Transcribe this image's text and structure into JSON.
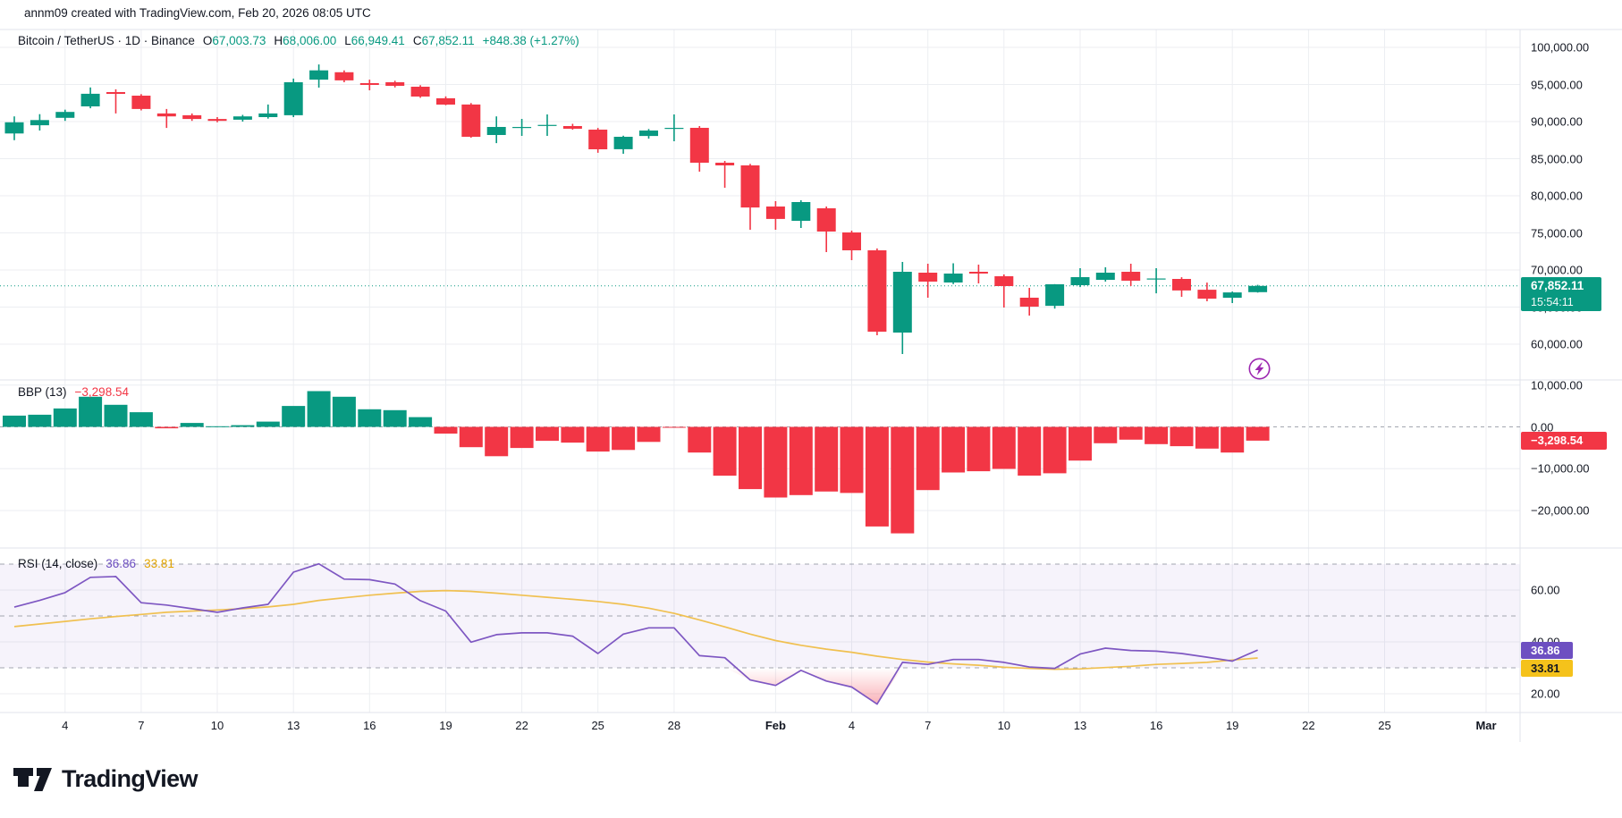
{
  "attribution": "annm09 created with TradingView.com, Feb 20, 2026 08:05 UTC",
  "header": {
    "symbol": "Bitcoin / TetherUS · 1D · Binance",
    "ohlc": [
      {
        "label": "O",
        "value": "67,003.73"
      },
      {
        "label": "H",
        "value": "68,006.00"
      },
      {
        "label": "L",
        "value": "66,949.41"
      },
      {
        "label": "C",
        "value": "67,852.11"
      }
    ],
    "change": "+848.38 (+1.27%)"
  },
  "price_scale": {
    "ticks": [
      {
        "label": "100,000.00",
        "price": 100000
      },
      {
        "label": "95,000.00",
        "price": 95000
      },
      {
        "label": "90,000.00",
        "price": 90000
      },
      {
        "label": "85,000.00",
        "price": 85000
      },
      {
        "label": "80,000.00",
        "price": 80000
      },
      {
        "label": "75,000.00",
        "price": 75000
      },
      {
        "label": "70,000.00",
        "price": 70000
      },
      {
        "label": "65,000.00",
        "price": 65000
      },
      {
        "label": "60,000.00",
        "price": 60000
      }
    ],
    "last_price_label": {
      "price": "67,852.11",
      "countdown": "15:54:11"
    }
  },
  "time_axis": {
    "ticks": [
      {
        "label": "4",
        "idx": 2
      },
      {
        "label": "7",
        "idx": 5
      },
      {
        "label": "10",
        "idx": 8
      },
      {
        "label": "13",
        "idx": 11
      },
      {
        "label": "16",
        "idx": 14
      },
      {
        "label": "19",
        "idx": 17
      },
      {
        "label": "22",
        "idx": 20
      },
      {
        "label": "25",
        "idx": 23
      },
      {
        "label": "28",
        "idx": 26
      },
      {
        "label": "Feb",
        "idx": 30,
        "bold": true
      },
      {
        "label": "4",
        "idx": 33
      },
      {
        "label": "7",
        "idx": 36
      },
      {
        "label": "10",
        "idx": 39
      },
      {
        "label": "13",
        "idx": 42
      },
      {
        "label": "16",
        "idx": 45
      },
      {
        "label": "19",
        "idx": 48
      },
      {
        "label": "22",
        "idx": 51
      },
      {
        "label": "25",
        "idx": 54
      },
      {
        "label": "Mar",
        "idx": 58,
        "bold": true
      }
    ]
  },
  "indicators": {
    "bbp": {
      "title": "BBP (13)",
      "value": "−3,298.54",
      "badge": "−3,298.54",
      "ticks": [
        {
          "label": "10,000.00",
          "value": 10000
        },
        {
          "label": "0.00",
          "value": 0
        },
        {
          "label": "−10,000.00",
          "value": -10000
        },
        {
          "label": "−20,000.00",
          "value": -20000
        }
      ]
    },
    "rsi": {
      "title": "RSI (14, close)",
      "value_main": "36.86",
      "value_ma": "33.81",
      "badge_main": "36.86",
      "badge_ma": "33.81",
      "ticks": [
        {
          "label": "60.00",
          "value": 60
        },
        {
          "label": "40.00",
          "value": 40
        },
        {
          "label": "20.00",
          "value": 20
        }
      ]
    }
  },
  "logo_text": "TradingView",
  "colors": {
    "up": "#089981",
    "down": "#F23645",
    "rsi_line": "#7E57C2",
    "rsi_ma_line": "#F0C050",
    "text": "#131722",
    "grid": "#ECEEF2",
    "separator": "#E0E3EB",
    "level_dash": "#858A96",
    "last_price": "#089981",
    "band_fill": "rgba(126,87,194,0.07)",
    "lightning": "#9C27B0"
  },
  "chart_data": {
    "type": "candlestick",
    "title": "Bitcoin / TetherUS 1D Binance",
    "timeframe": "1D",
    "x_dates": [
      "Jan 2",
      "Jan 3",
      "Jan 4",
      "Jan 5",
      "Jan 6",
      "Jan 7",
      "Jan 8",
      "Jan 9",
      "Jan 10",
      "Jan 11",
      "Jan 12",
      "Jan 13",
      "Jan 14",
      "Jan 15",
      "Jan 16",
      "Jan 17",
      "Jan 18",
      "Jan 19",
      "Jan 20",
      "Jan 21",
      "Jan 22",
      "Jan 23",
      "Jan 24",
      "Jan 25",
      "Jan 26",
      "Jan 27",
      "Jan 28",
      "Jan 29",
      "Jan 30",
      "Jan 31",
      "Feb 1",
      "Feb 2",
      "Feb 3",
      "Feb 4",
      "Feb 5",
      "Feb 6",
      "Feb 7",
      "Feb 8",
      "Feb 9",
      "Feb 10",
      "Feb 11",
      "Feb 12",
      "Feb 13",
      "Feb 14",
      "Feb 15",
      "Feb 16",
      "Feb 17",
      "Feb 18",
      "Feb 19",
      "Feb 20"
    ],
    "ohlc": [
      [
        88400,
        90700,
        87500,
        89900
      ],
      [
        89500,
        91000,
        88800,
        90200
      ],
      [
        90500,
        91600,
        90100,
        91300
      ],
      [
        92050,
        94600,
        91800,
        93750
      ],
      [
        93980,
        94350,
        91100,
        93740
      ],
      [
        93500,
        93700,
        91500,
        91700
      ],
      [
        91100,
        91700,
        89150,
        90700
      ],
      [
        90850,
        91100,
        90100,
        90350
      ],
      [
        90350,
        90600,
        89900,
        90100
      ],
      [
        90250,
        90900,
        90000,
        90700
      ],
      [
        90600,
        92300,
        90400,
        91100
      ],
      [
        90850,
        95800,
        90600,
        95300
      ],
      [
        95650,
        97700,
        94580,
        96900
      ],
      [
        96650,
        96900,
        95300,
        95550
      ],
      [
        95180,
        95650,
        94220,
        94940
      ],
      [
        95300,
        95500,
        94600,
        94820
      ],
      [
        94700,
        94900,
        93200,
        93370
      ],
      [
        93150,
        93400,
        92200,
        92290
      ],
      [
        92300,
        92500,
        87830,
        87950
      ],
      [
        88200,
        90700,
        87100,
        89280
      ],
      [
        89150,
        90360,
        88070,
        89280
      ],
      [
        89520,
        90960,
        88070,
        89560
      ],
      [
        89400,
        89700,
        88900,
        89040
      ],
      [
        88920,
        89150,
        85790,
        86270
      ],
      [
        86270,
        88100,
        85660,
        87950
      ],
      [
        88070,
        89000,
        87700,
        88800
      ],
      [
        89040,
        90960,
        87350,
        89160
      ],
      [
        89160,
        89400,
        83250,
        84460
      ],
      [
        84460,
        84700,
        81080,
        84100
      ],
      [
        84100,
        84300,
        75420,
        78430
      ],
      [
        78550,
        79280,
        75420,
        76870
      ],
      [
        76630,
        79400,
        75660,
        79160
      ],
      [
        78310,
        78550,
        72410,
        75180
      ],
      [
        75060,
        75300,
        71320,
        72650
      ],
      [
        72650,
        72900,
        61200,
        61690
      ],
      [
        61570,
        71080,
        58670,
        69760
      ],
      [
        69640,
        70840,
        66260,
        68430
      ],
      [
        68310,
        70900,
        68100,
        69520
      ],
      [
        69760,
        70720,
        68190,
        69520
      ],
      [
        69160,
        69400,
        64940,
        67830
      ],
      [
        66260,
        67590,
        63850,
        65050
      ],
      [
        65170,
        68100,
        64800,
        68070
      ],
      [
        67950,
        70240,
        67700,
        69040
      ],
      [
        68675,
        70360,
        68430,
        69640
      ],
      [
        69760,
        70840,
        67830,
        68550
      ],
      [
        68780,
        70240,
        66860,
        68850
      ],
      [
        68790,
        69020,
        66390,
        67230
      ],
      [
        67340,
        68300,
        65780,
        66140
      ],
      [
        66260,
        67100,
        65540,
        66980
      ],
      [
        67003.73,
        68006.0,
        66949.41,
        67852.11
      ]
    ],
    "price_axis": {
      "visible_labels": [
        100000,
        95000,
        90000,
        85000,
        80000,
        75000,
        70000,
        65000,
        60000
      ],
      "grid_step": 5000,
      "last_price": 67852.11
    },
    "series_colors": {
      "up": "#089981",
      "down": "#F23645"
    },
    "indicators": [
      {
        "name": "BBP",
        "params": "13",
        "type": "bar",
        "values": [
          2700,
          2900,
          4400,
          7200,
          5270,
          3500,
          -350,
          950,
          150,
          400,
          1250,
          5000,
          8550,
          7200,
          4200,
          4000,
          2320,
          -1600,
          -4840,
          -7000,
          -5050,
          -3330,
          -3760,
          -5900,
          -5520,
          -3600,
          -150,
          -6130,
          -11670,
          -14880,
          -16880,
          -16300,
          -15450,
          -15800,
          -23800,
          -25450,
          -15100,
          -10900,
          -10600,
          -10050,
          -11650,
          -11100,
          -8060,
          -3900,
          -3050,
          -4130,
          -4620,
          -5200,
          -6130,
          -3298.54
        ],
        "last_value": -3298.54,
        "axis_labels": [
          10000,
          0,
          -10000,
          -20000
        ]
      },
      {
        "name": "RSI",
        "params": "14, close",
        "type": "line",
        "levels": {
          "overbought": 70,
          "middle": 50,
          "oversold": 30
        },
        "axis_labels": [
          60,
          40,
          20
        ],
        "series": [
          {
            "name": "RSI",
            "color": "#7E57C2",
            "last_value": 36.86,
            "values": [
              53.4,
              56,
              59,
              64.9,
              65.2,
              55.1,
              54.2,
              52.8,
              51.4,
              53.1,
              54.5,
              66.9,
              70.1,
              64.2,
              64,
              62.3,
              55.9,
              51.9,
              39.9,
              42.8,
              43.5,
              43.5,
              42.2,
              35.5,
              43,
              45.4,
              45.4,
              34.7,
              33.9,
              25.3,
              23.2,
              29,
              24.9,
              22.6,
              16,
              32.1,
              31.3,
              33.2,
              33.2,
              32.1,
              30.3,
              29.8,
              35.3,
              37.6,
              36.7,
              36.4,
              35.5,
              34.1,
              32.6,
              36.86
            ]
          },
          {
            "name": "RSI-based MA",
            "color": "#F0C050",
            "last_value": 33.81,
            "values": [
              45.9,
              46.9,
              47.9,
              48.9,
              49.8,
              50.6,
              51.4,
              51.9,
              52.3,
              52.8,
              53.5,
              54.5,
              56,
              57,
              58,
              58.8,
              59.5,
              59.8,
              59.5,
              58.8,
              58,
              57.2,
              56.4,
              55.6,
              54.5,
              53,
              51,
              48.5,
              45.8,
              43,
              40.5,
              38.7,
              37.2,
              36,
              34.5,
              33.2,
              32.2,
              31.5,
              31,
              30.2,
              29.8,
              29.4,
              29.6,
              30.1,
              30.6,
              31.3,
              31.7,
              32.1,
              33,
              33.81
            ]
          }
        ]
      }
    ]
  }
}
